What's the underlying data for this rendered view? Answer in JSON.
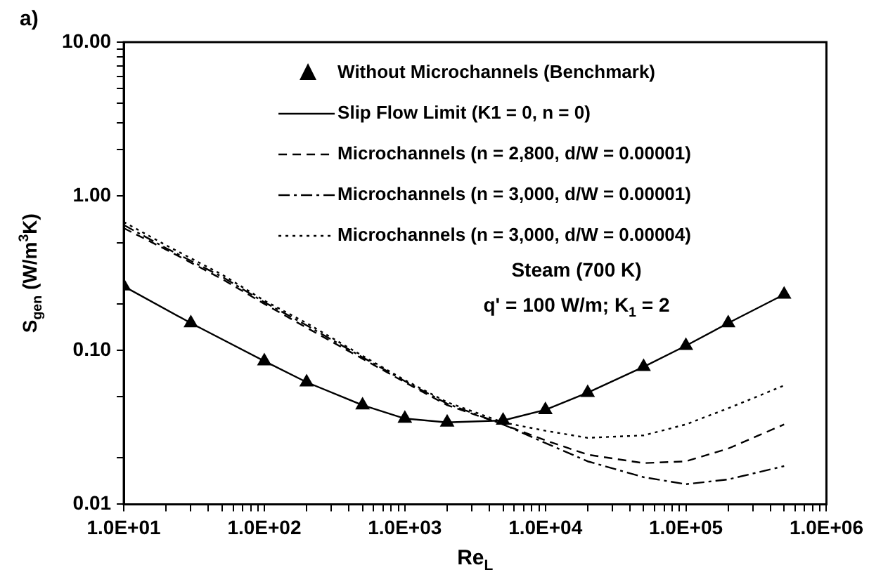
{
  "chart_data": {
    "type": "line",
    "title": "a)",
    "xlabel": "Re$_{L}$",
    "ylabel": "S$_{gen}$ (W/m$^{3}$K)",
    "log": "xy",
    "grid": false,
    "legend": "top",
    "xlim": [
      10,
      1000000
    ],
    "ylim": [
      0.01,
      10
    ],
    "xticks": [
      {
        "value": 10,
        "label": "1.0E+01"
      },
      {
        "value": 20,
        "label": null
      },
      {
        "value": 30,
        "label": null
      },
      {
        "value": 40,
        "label": null
      },
      {
        "value": 50,
        "label": null
      },
      {
        "value": 60,
        "label": null
      },
      {
        "value": 70,
        "label": null
      },
      {
        "value": 80,
        "label": null
      },
      {
        "value": 90,
        "label": null
      },
      {
        "value": 100,
        "label": "1.0E+02"
      },
      {
        "value": 200,
        "label": null
      },
      {
        "value": 300,
        "label": null
      },
      {
        "value": 400,
        "label": null
      },
      {
        "value": 500,
        "label": null
      },
      {
        "value": 600,
        "label": null
      },
      {
        "value": 700,
        "label": null
      },
      {
        "value": 800,
        "label": null
      },
      {
        "value": 900,
        "label": null
      },
      {
        "value": 1000,
        "label": "1.0E+03"
      },
      {
        "value": 2000,
        "label": null
      },
      {
        "value": 3000,
        "label": null
      },
      {
        "value": 4000,
        "label": null
      },
      {
        "value": 5000,
        "label": null
      },
      {
        "value": 6000,
        "label": null
      },
      {
        "value": 7000,
        "label": null
      },
      {
        "value": 8000,
        "label": null
      },
      {
        "value": 9000,
        "label": null
      },
      {
        "value": 10000,
        "label": "1.0E+04"
      },
      {
        "value": 20000,
        "label": null
      },
      {
        "value": 30000,
        "label": null
      },
      {
        "value": 40000,
        "label": null
      },
      {
        "value": 50000,
        "label": null
      },
      {
        "value": 60000,
        "label": null
      },
      {
        "value": 70000,
        "label": null
      },
      {
        "value": 80000,
        "label": null
      },
      {
        "value": 90000,
        "label": null
      },
      {
        "value": 100000,
        "label": "1.0E+05"
      },
      {
        "value": 200000,
        "label": null
      },
      {
        "value": 300000,
        "label": null
      },
      {
        "value": 400000,
        "label": null
      },
      {
        "value": 500000,
        "label": null
      },
      {
        "value": 600000,
        "label": null
      },
      {
        "value": 700000,
        "label": null
      },
      {
        "value": 800000,
        "label": null
      },
      {
        "value": 900000,
        "label": null
      },
      {
        "value": 1000000,
        "label": "1.0E+06"
      }
    ],
    "yticks": [
      {
        "value": 0.01,
        "label": "0.01"
      },
      {
        "value": 0.02,
        "label": null
      },
      {
        "value": 0.05,
        "label": null
      },
      {
        "value": 0.1,
        "label": "0.10"
      },
      {
        "value": 0.2,
        "label": null
      },
      {
        "value": 0.5,
        "label": null
      },
      {
        "value": 1,
        "label": "1.00"
      },
      {
        "value": 2,
        "label": null
      },
      {
        "value": 3,
        "label": null
      },
      {
        "value": 4,
        "label": null
      },
      {
        "value": 5,
        "label": null
      },
      {
        "value": 6,
        "label": null
      },
      {
        "value": 7,
        "label": null
      },
      {
        "value": 8,
        "label": null
      },
      {
        "value": 9,
        "label": null
      },
      {
        "value": 10,
        "label": "10.00"
      }
    ],
    "annotations": [
      "Steam (700 K)",
      "q' = 100 W/m; K$_{1}$ = 2"
    ],
    "series": [
      {
        "name": "Without Microchannels (Benchmark)",
        "type": "scatter",
        "marker": "triangle",
        "color": "#000000",
        "x": [
          10,
          30,
          100,
          200,
          500,
          1000,
          2000,
          5000,
          10000,
          20000,
          50000,
          100000,
          200000,
          500000
        ],
        "values": [
          0.26,
          0.15,
          0.085,
          0.062,
          0.044,
          0.036,
          0.034,
          0.035,
          0.041,
          0.053,
          0.078,
          0.107,
          0.15,
          0.23
        ]
      },
      {
        "name": "Slip Flow Limit (K1 = 0, n = 0)",
        "type": "line",
        "line_style": "solid",
        "color": "#000000",
        "x": [
          10,
          30,
          100,
          200,
          500,
          1000,
          2000,
          5000,
          10000,
          20000,
          50000,
          100000,
          200000,
          500000
        ],
        "values": [
          0.26,
          0.15,
          0.085,
          0.062,
          0.044,
          0.036,
          0.034,
          0.035,
          0.041,
          0.053,
          0.078,
          0.107,
          0.15,
          0.23
        ]
      },
      {
        "name": "Microchannels (n = 2,800, d/W = 0.00001)",
        "type": "line",
        "line_style": "dashed",
        "color": "#000000",
        "x": [
          10,
          20,
          50,
          100,
          200,
          500,
          1000,
          2000,
          5000,
          10000,
          20000,
          50000,
          100000,
          200000,
          500000
        ],
        "values": [
          0.62,
          0.45,
          0.29,
          0.2,
          0.14,
          0.088,
          0.062,
          0.044,
          0.033,
          0.026,
          0.021,
          0.0185,
          0.019,
          0.023,
          0.033
        ]
      },
      {
        "name": "Microchannels (n = 3,000, d/W = 0.00001)",
        "type": "line",
        "line_style": "dashdot",
        "color": "#000000",
        "x": [
          10,
          20,
          50,
          100,
          200,
          500,
          1000,
          2000,
          5000,
          10000,
          20000,
          50000,
          100000,
          200000,
          500000
        ],
        "values": [
          0.65,
          0.46,
          0.3,
          0.205,
          0.145,
          0.09,
          0.063,
          0.045,
          0.033,
          0.025,
          0.019,
          0.015,
          0.0135,
          0.0145,
          0.0177
        ]
      },
      {
        "name": "Microchannels (n = 3,000, d/W = 0.00004)",
        "type": "line",
        "line_style": "dotted",
        "color": "#000000",
        "x": [
          10,
          20,
          50,
          100,
          200,
          500,
          1000,
          2000,
          5000,
          10000,
          20000,
          50000,
          100000,
          200000,
          500000
        ],
        "values": [
          0.68,
          0.48,
          0.31,
          0.21,
          0.15,
          0.092,
          0.064,
          0.046,
          0.034,
          0.03,
          0.027,
          0.028,
          0.033,
          0.042,
          0.059
        ]
      }
    ]
  }
}
